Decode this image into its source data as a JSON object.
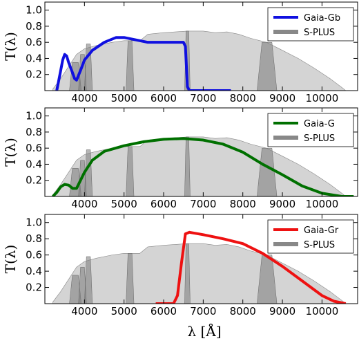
{
  "chart_data": {
    "type": "line",
    "shared": {
      "xlabel": "λ [Å]",
      "ylabel": "T(λ)",
      "xlim": [
        3000,
        10900
      ],
      "ylim": [
        0,
        1.1
      ],
      "xticks": [
        "4000",
        "5000",
        "6000",
        "7000",
        "8000",
        "9000",
        "10000"
      ],
      "yticks": [
        "0.2",
        "0.4",
        "0.6",
        "0.8",
        "1.0"
      ],
      "grid": false,
      "legend_position": "top-right"
    },
    "background": {
      "name": "S-PLUS",
      "color": "#a9a9a9",
      "broad_envelope": [
        [
          3200,
          0.02
        ],
        [
          3400,
          0.15
        ],
        [
          3600,
          0.3
        ],
        [
          3800,
          0.45
        ],
        [
          4000,
          0.52
        ],
        [
          4300,
          0.56
        ],
        [
          4700,
          0.6
        ],
        [
          5000,
          0.62
        ],
        [
          5400,
          0.62
        ],
        [
          5600,
          0.7
        ],
        [
          6000,
          0.72
        ],
        [
          6300,
          0.73
        ],
        [
          6600,
          0.74
        ],
        [
          6800,
          0.74
        ],
        [
          7000,
          0.74
        ],
        [
          7300,
          0.72
        ],
        [
          7600,
          0.73
        ],
        [
          7900,
          0.7
        ],
        [
          8200,
          0.65
        ],
        [
          8600,
          0.6
        ],
        [
          9000,
          0.5
        ],
        [
          9400,
          0.4
        ],
        [
          9800,
          0.28
        ],
        [
          10200,
          0.15
        ],
        [
          10500,
          0.04
        ],
        [
          10600,
          0.0
        ]
      ],
      "narrow_filters": [
        {
          "center": 3770,
          "width": 300,
          "peak": 0.35
        },
        {
          "center": 3950,
          "width": 200,
          "peak": 0.45
        },
        {
          "center": 4100,
          "width": 200,
          "peak": 0.58
        },
        {
          "center": 5150,
          "width": 200,
          "peak": 0.62
        },
        {
          "center": 6600,
          "width": 140,
          "peak": 0.74
        },
        {
          "center": 8610,
          "width": 500,
          "peak": 0.6
        }
      ]
    },
    "panels": [
      {
        "series_name": "Gaia-Gb",
        "legend_ref": "S-PLUS",
        "color": "#1010e0",
        "points": [
          [
            3300,
            0.0
          ],
          [
            3400,
            0.25
          ],
          [
            3450,
            0.38
          ],
          [
            3500,
            0.45
          ],
          [
            3550,
            0.43
          ],
          [
            3600,
            0.35
          ],
          [
            3700,
            0.22
          ],
          [
            3750,
            0.15
          ],
          [
            3800,
            0.13
          ],
          [
            3900,
            0.25
          ],
          [
            4000,
            0.38
          ],
          [
            4200,
            0.5
          ],
          [
            4500,
            0.6
          ],
          [
            4800,
            0.66
          ],
          [
            5000,
            0.66
          ],
          [
            5300,
            0.63
          ],
          [
            5600,
            0.6
          ],
          [
            6000,
            0.6
          ],
          [
            6300,
            0.6
          ],
          [
            6500,
            0.6
          ],
          [
            6550,
            0.55
          ],
          [
            6600,
            0.05
          ],
          [
            6650,
            0.0
          ],
          [
            7700,
            0.0
          ]
        ]
      },
      {
        "series_name": "Gaia-G",
        "legend_ref": "S-PLUS",
        "color": "#007000",
        "points": [
          [
            3200,
            0.0
          ],
          [
            3300,
            0.05
          ],
          [
            3400,
            0.12
          ],
          [
            3500,
            0.15
          ],
          [
            3600,
            0.14
          ],
          [
            3700,
            0.1
          ],
          [
            3800,
            0.1
          ],
          [
            3900,
            0.2
          ],
          [
            4000,
            0.3
          ],
          [
            4200,
            0.45
          ],
          [
            4500,
            0.56
          ],
          [
            5000,
            0.63
          ],
          [
            5500,
            0.68
          ],
          [
            6000,
            0.71
          ],
          [
            6500,
            0.72
          ],
          [
            7000,
            0.7
          ],
          [
            7500,
            0.65
          ],
          [
            8000,
            0.55
          ],
          [
            8500,
            0.4
          ],
          [
            9000,
            0.27
          ],
          [
            9500,
            0.13
          ],
          [
            10000,
            0.04
          ],
          [
            10500,
            0.0
          ],
          [
            10800,
            0.0
          ]
        ]
      },
      {
        "series_name": "Gaia-Gr",
        "legend_ref": "S-PLUS",
        "color": "#ee1111",
        "points": [
          [
            5800,
            0.0
          ],
          [
            6250,
            0.0
          ],
          [
            6350,
            0.1
          ],
          [
            6450,
            0.5
          ],
          [
            6550,
            0.86
          ],
          [
            6650,
            0.88
          ],
          [
            7000,
            0.85
          ],
          [
            7500,
            0.8
          ],
          [
            8000,
            0.74
          ],
          [
            8500,
            0.62
          ],
          [
            9000,
            0.46
          ],
          [
            9500,
            0.28
          ],
          [
            10000,
            0.1
          ],
          [
            10300,
            0.03
          ],
          [
            10600,
            0.0
          ]
        ]
      }
    ]
  }
}
